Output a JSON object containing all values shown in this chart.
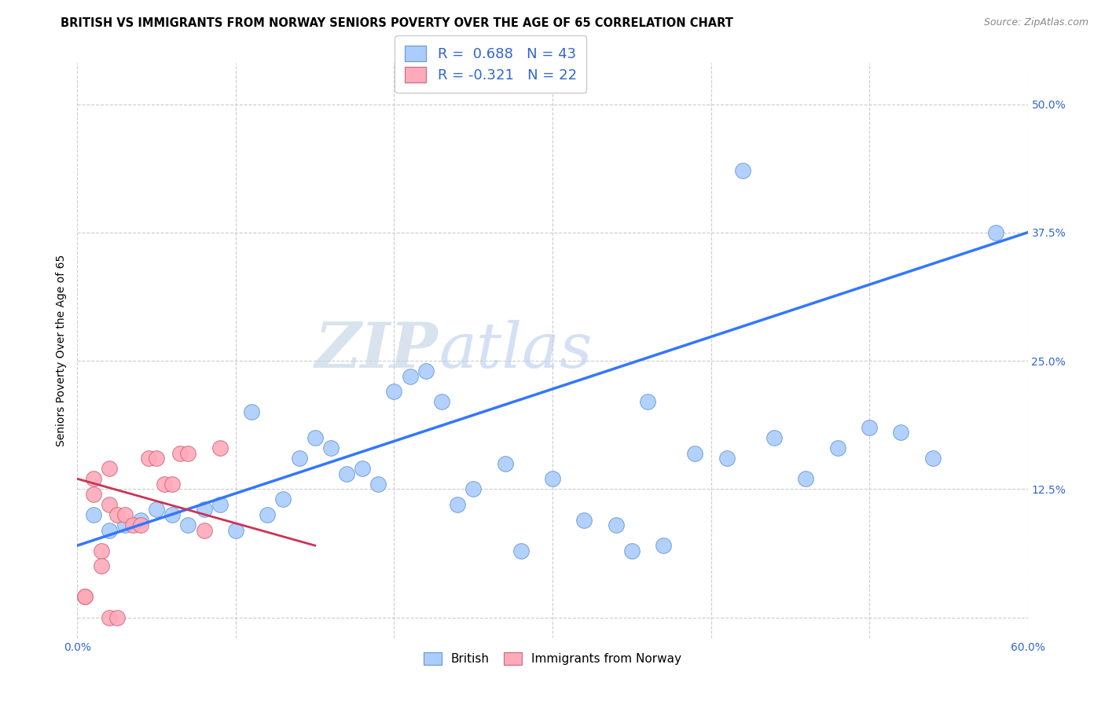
{
  "title": "BRITISH VS IMMIGRANTS FROM NORWAY SENIORS POVERTY OVER THE AGE OF 65 CORRELATION CHART",
  "source": "Source: ZipAtlas.com",
  "ylabel": "Seniors Poverty Over the Age of 65",
  "xlim": [
    0.0,
    0.6
  ],
  "ylim": [
    -0.02,
    0.54
  ],
  "xticks": [
    0.0,
    0.1,
    0.2,
    0.3,
    0.4,
    0.5,
    0.6
  ],
  "xticklabels": [
    "0.0%",
    "",
    "",
    "",
    "",
    "",
    "60.0%"
  ],
  "ytick_positions": [
    0.0,
    0.125,
    0.25,
    0.375,
    0.5
  ],
  "yticklabels": [
    "",
    "12.5%",
    "25.0%",
    "37.5%",
    "50.0%"
  ],
  "grid_color": "#cccccc",
  "background_color": "#ffffff",
  "british_R": 0.688,
  "british_N": 43,
  "norway_R": -0.321,
  "norway_N": 22,
  "british_color": "#aaccff",
  "norway_color": "#ffaabb",
  "trendline_british_color": "#3377ff",
  "trendline_norway_color": "#cc3355",
  "british_x": [
    0.01,
    0.02,
    0.03,
    0.04,
    0.05,
    0.06,
    0.07,
    0.08,
    0.09,
    0.1,
    0.11,
    0.12,
    0.13,
    0.14,
    0.15,
    0.16,
    0.17,
    0.18,
    0.19,
    0.2,
    0.21,
    0.22,
    0.23,
    0.24,
    0.25,
    0.27,
    0.28,
    0.3,
    0.32,
    0.34,
    0.35,
    0.37,
    0.39,
    0.41,
    0.44,
    0.46,
    0.48,
    0.5,
    0.52,
    0.54,
    0.36,
    0.42,
    0.58
  ],
  "british_y": [
    0.1,
    0.085,
    0.09,
    0.095,
    0.105,
    0.1,
    0.09,
    0.105,
    0.11,
    0.085,
    0.2,
    0.1,
    0.115,
    0.155,
    0.175,
    0.165,
    0.14,
    0.145,
    0.13,
    0.22,
    0.235,
    0.24,
    0.21,
    0.11,
    0.125,
    0.15,
    0.065,
    0.135,
    0.095,
    0.09,
    0.065,
    0.07,
    0.16,
    0.155,
    0.175,
    0.135,
    0.165,
    0.185,
    0.18,
    0.155,
    0.21,
    0.435,
    0.375
  ],
  "norway_x": [
    0.005,
    0.005,
    0.01,
    0.01,
    0.02,
    0.02,
    0.025,
    0.03,
    0.035,
    0.04,
    0.045,
    0.05,
    0.055,
    0.06,
    0.065,
    0.07,
    0.08,
    0.09,
    0.015,
    0.015,
    0.02,
    0.025
  ],
  "norway_y": [
    0.02,
    0.02,
    0.135,
    0.12,
    0.145,
    0.11,
    0.1,
    0.1,
    0.09,
    0.09,
    0.155,
    0.155,
    0.13,
    0.13,
    0.16,
    0.16,
    0.085,
    0.165,
    0.065,
    0.05,
    0.0,
    0.0
  ],
  "trendline_brit_x0": 0.0,
  "trendline_brit_y0": 0.07,
  "trendline_brit_x1": 0.6,
  "trendline_brit_y1": 0.375,
  "trendline_nor_x0": 0.0,
  "trendline_nor_y0": 0.135,
  "trendline_nor_x1": 0.15,
  "trendline_nor_y1": 0.07,
  "legend_text_color": "#3366cc",
  "title_fontsize": 10.5,
  "axis_fontsize": 10,
  "tick_fontsize": 10,
  "dot_size": 200
}
